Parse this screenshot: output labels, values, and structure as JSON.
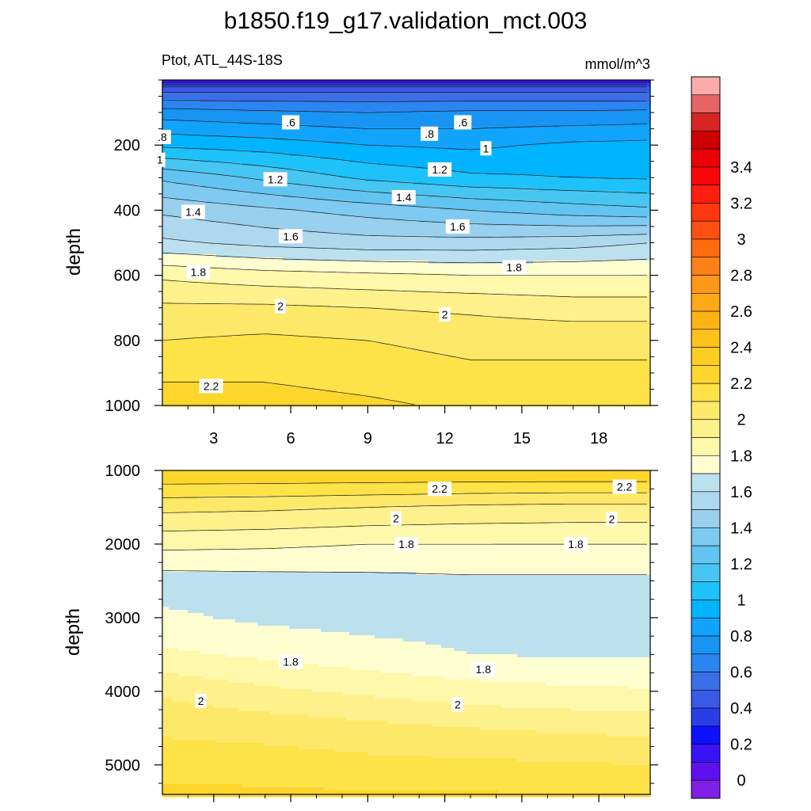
{
  "title": "b1850.f19_g17.validation_mct.003",
  "subtitle_left": "Ptot, ATL_44S-18S",
  "subtitle_right": "mmol/m^3",
  "ylabel": "depth",
  "chart_data": [
    {
      "type": "contour",
      "panel": "upper",
      "xlabel": "",
      "ylabel": "depth",
      "xlim": [
        1,
        20
      ],
      "ylim": [
        1000,
        0
      ],
      "x_ticks": [
        3,
        6,
        9,
        12,
        15,
        18
      ],
      "y_ticks": [
        200,
        400,
        600,
        800,
        1000
      ],
      "depth_levels": [
        0,
        25,
        50,
        100,
        200,
        300,
        400,
        500,
        600,
        700,
        800,
        900,
        1000
      ],
      "x": [
        1,
        5,
        9,
        13,
        17,
        20
      ],
      "values": [
        [
          0.1,
          0.1,
          0.1,
          0.1,
          0.1,
          0.1
        ],
        [
          0.45,
          0.45,
          0.45,
          0.45,
          0.45,
          0.45
        ],
        [
          0.55,
          0.55,
          0.55,
          0.55,
          0.55,
          0.55
        ],
        [
          0.75,
          0.72,
          0.7,
          0.72,
          0.72,
          0.73
        ],
        [
          0.98,
          0.95,
          0.9,
          0.88,
          0.92,
          0.93
        ],
        [
          1.28,
          1.18,
          1.08,
          1.02,
          1.0,
          0.99
        ],
        [
          1.48,
          1.42,
          1.36,
          1.3,
          1.25,
          1.22
        ],
        [
          1.62,
          1.57,
          1.54,
          1.54,
          1.56,
          1.6
        ],
        [
          1.88,
          1.84,
          1.82,
          1.8,
          1.8,
          1.8
        ],
        [
          2.02,
          2.02,
          2.0,
          1.98,
          1.95,
          1.95
        ],
        [
          2.1,
          2.12,
          2.1,
          2.07,
          2.07,
          2.07
        ],
        [
          2.18,
          2.18,
          2.15,
          2.12,
          2.12,
          2.12
        ],
        [
          2.25,
          2.25,
          2.22,
          2.18,
          2.16,
          2.16
        ]
      ],
      "contour_labels": [
        {
          "text": ".6",
          "x": 6,
          "depth": 130
        },
        {
          "text": ".6",
          "x": 12.7,
          "depth": 130
        },
        {
          "text": ".8",
          "x": 1,
          "depth": 175
        },
        {
          "text": ".8",
          "x": 11.4,
          "depth": 165
        },
        {
          "text": "1",
          "x": 0.9,
          "depth": 245
        },
        {
          "text": "1",
          "x": 13.6,
          "depth": 210
        },
        {
          "text": "1.2",
          "x": 5.4,
          "depth": 305
        },
        {
          "text": "1.2",
          "x": 11.8,
          "depth": 275
        },
        {
          "text": "1.4",
          "x": 2.2,
          "depth": 405
        },
        {
          "text": "1.4",
          "x": 10.4,
          "depth": 360
        },
        {
          "text": "1.6",
          "x": 6,
          "depth": 480
        },
        {
          "text": "1.6",
          "x": 12.5,
          "depth": 450
        },
        {
          "text": "1.8",
          "x": 2.4,
          "depth": 590
        },
        {
          "text": "1.8",
          "x": 14.7,
          "depth": 575
        },
        {
          "text": "2",
          "x": 5.6,
          "depth": 695
        },
        {
          "text": "2",
          "x": 12,
          "depth": 720
        },
        {
          "text": "2.2",
          "x": 2.9,
          "depth": 940
        }
      ]
    },
    {
      "type": "contour",
      "panel": "lower",
      "xlabel": "",
      "ylabel": "depth",
      "xlim": [
        1,
        20
      ],
      "ylim": [
        5400,
        1000
      ],
      "x_ticks": [
        3,
        6,
        9,
        12,
        15,
        18
      ],
      "y_ticks": [
        1000,
        2000,
        3000,
        4000,
        5000
      ],
      "depth_levels": [
        1000,
        1500,
        2000,
        2500,
        3000,
        3500,
        4000,
        4500,
        5000,
        5400
      ],
      "x": [
        1,
        5,
        9,
        13,
        17,
        20
      ],
      "values": [
        [
          2.3,
          2.3,
          2.3,
          2.3,
          2.3,
          2.3
        ],
        [
          2.03,
          2.02,
          2.0,
          1.98,
          1.97,
          1.97
        ],
        [
          1.83,
          1.82,
          1.8,
          1.8,
          1.8,
          1.8
        ],
        [
          1.65,
          1.66,
          1.67,
          1.68,
          1.68,
          1.68
        ],
        [
          1.72,
          1.68,
          1.66,
          1.66,
          1.65,
          1.6
        ],
        [
          1.82,
          1.78,
          1.74,
          1.7,
          1.69,
          1.69
        ],
        [
          1.98,
          1.92,
          1.88,
          1.84,
          1.82,
          1.81
        ],
        [
          2.08,
          2.06,
          2.03,
          2.0,
          1.98,
          1.97
        ],
        [
          2.16,
          2.15,
          2.13,
          2.12,
          2.11,
          2.1
        ],
        [
          2.22,
          2.22,
          2.21,
          2.21,
          2.2,
          2.2
        ]
      ],
      "contour_labels": [
        {
          "text": "2.2",
          "x": 11.8,
          "depth": 1250
        },
        {
          "text": "2.2",
          "x": 19,
          "depth": 1220
        },
        {
          "text": "2",
          "x": 10.1,
          "depth": 1650
        },
        {
          "text": "2",
          "x": 18.5,
          "depth": 1660
        },
        {
          "text": "1.8",
          "x": 10.5,
          "depth": 2000
        },
        {
          "text": "1.8",
          "x": 17.1,
          "depth": 2000
        },
        {
          "text": "1.8",
          "x": 6,
          "depth": 3600
        },
        {
          "text": "1.8",
          "x": 13.5,
          "depth": 3700
        },
        {
          "text": "2",
          "x": 2.5,
          "depth": 4130
        },
        {
          "text": "2",
          "x": 12.5,
          "depth": 4180
        }
      ]
    }
  ],
  "colorbar": {
    "labels": [
      "0",
      "0.2",
      "0.4",
      "0.6",
      "0.8",
      "1",
      "1.2",
      "1.4",
      "1.6",
      "1.8",
      "2",
      "2.2",
      "2.4",
      "2.6",
      "2.8",
      "3",
      "3.2",
      "3.4"
    ],
    "colors": [
      "#8020e6",
      "#5f10ef",
      "#3a12f7",
      "#0f10ff",
      "#2a3ee8",
      "#3a5ae6",
      "#3a6fe8",
      "#2b86f2",
      "#1894f2",
      "#10a4fc",
      "#00b4ff",
      "#1ec2fa",
      "#48c6f2",
      "#62c4f0",
      "#7ecaf0",
      "#98d0ee",
      "#aed8ee",
      "#bce0ee",
      "#fffed0",
      "#fef8aa",
      "#fef08a",
      "#fee869",
      "#fde248",
      "#fdd62b",
      "#fdcd22",
      "#fcc218",
      "#fcb414",
      "#fda816",
      "#fe9818",
      "#fe8018",
      "#fe6c10",
      "#fe5010",
      "#fe3810",
      "#fe1e0e",
      "#fd0408",
      "#ea0006",
      "#cc0000",
      "#d82424",
      "#e66464",
      "#fbacaa"
    ]
  }
}
